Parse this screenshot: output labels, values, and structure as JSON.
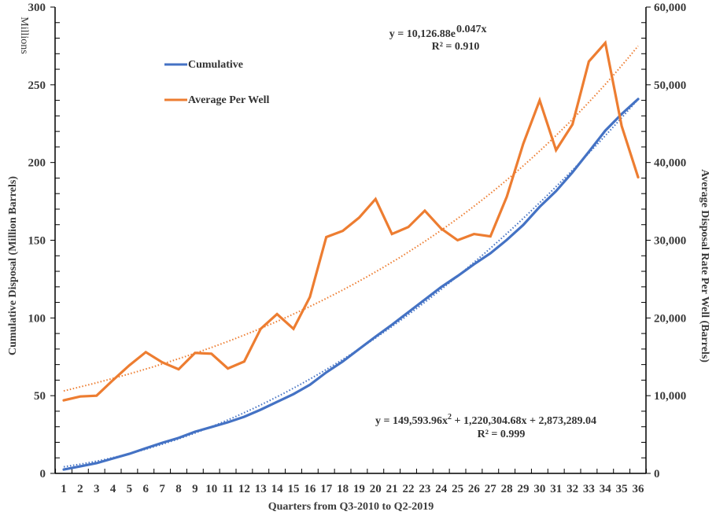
{
  "chart_data": {
    "type": "line",
    "title": "",
    "xlabel": "Quarters from  Q3-2010 to Q2-2019",
    "ylabel_left": "Cumulative  Disposal (Million Barrels)",
    "ylabel_right": "Average Disposal Rate Per Well (Barrels)",
    "left_unit_label": "Millions",
    "x": [
      1,
      2,
      3,
      4,
      5,
      6,
      7,
      8,
      9,
      10,
      11,
      12,
      13,
      14,
      15,
      16,
      17,
      18,
      19,
      20,
      21,
      22,
      23,
      24,
      25,
      26,
      27,
      28,
      29,
      30,
      31,
      32,
      33,
      34,
      35,
      36
    ],
    "x_tick_labels": [
      "1",
      "2",
      "3",
      "4",
      "5",
      "6",
      "7",
      "8",
      "9",
      "10",
      "11",
      "12",
      "13",
      "14",
      "15",
      "16",
      "17",
      "18",
      "19",
      "20",
      "21",
      "22",
      "23",
      "24",
      "25",
      "26",
      "27",
      "28",
      "29",
      "30",
      "31",
      "32",
      "33",
      "34",
      "35",
      "36"
    ],
    "ylim_left": [
      0,
      300
    ],
    "ylim_right": [
      0,
      60000
    ],
    "y_ticks_left": [
      "0",
      "50",
      "100",
      "150",
      "200",
      "250",
      "300"
    ],
    "y_ticks_right": [
      "0",
      "10,000",
      "20,000",
      "30,000",
      "40,000",
      "50,000",
      "60,000"
    ],
    "series": [
      {
        "name": "Cumulative",
        "axis": "left",
        "color": "#4472C4",
        "values": [
          2.5,
          4.5,
          6.6,
          9.6,
          12.6,
          16.2,
          19.7,
          22.8,
          26.8,
          29.8,
          32.9,
          36.4,
          41,
          46,
          51,
          57,
          65,
          72,
          80,
          88,
          95.6,
          103.7,
          111.8,
          119.9,
          127,
          134.5,
          141.6,
          150.2,
          159.8,
          171.5,
          181.6,
          193.7,
          206.9,
          220.5,
          231.2,
          240.8
        ]
      },
      {
        "name": "Average Per Well",
        "axis": "right",
        "color": "#ED7D31",
        "values": [
          9400,
          9900,
          10000,
          12000,
          13900,
          15600,
          14300,
          13400,
          15500,
          15400,
          13500,
          14400,
          18600,
          20500,
          18600,
          22700,
          30400,
          31200,
          32900,
          35300,
          30800,
          31700,
          33800,
          31500,
          30000,
          30800,
          30500,
          35600,
          42400,
          48000,
          41600,
          44900,
          53000,
          55400,
          44700,
          38100
        ]
      }
    ],
    "trendlines": [
      {
        "series": "Cumulative",
        "type": "polynomial",
        "equation_prefix": "y = 149,593.96x",
        "equation_suffix": " + 1,220,304.68x + 2,873,289.04",
        "exponent_text": "2",
        "r2_text": "R² = 0.999",
        "coefficients": [
          149593.96,
          1220304.68,
          2873289.04
        ],
        "color": "#4472C4"
      },
      {
        "series": "Average Per Well",
        "type": "exponential",
        "equation_prefix": "y = 10,126.88e",
        "exponent_text": "0.047x",
        "r2_text": "R² = 0.910",
        "a": 10126.88,
        "b": 0.047,
        "color": "#ED7D31"
      }
    ],
    "legend": {
      "placement": "top-left",
      "entries": [
        "Cumulative",
        "Average Per Well"
      ]
    },
    "grid": false
  }
}
